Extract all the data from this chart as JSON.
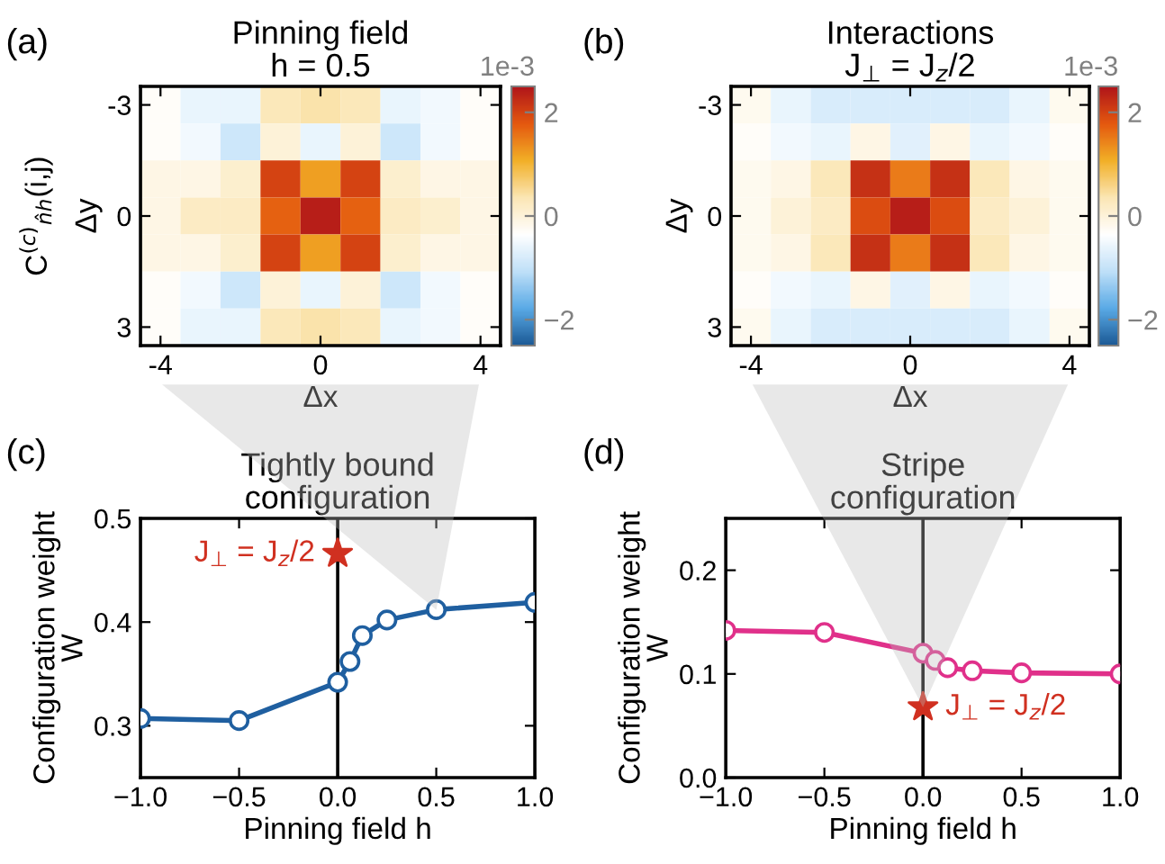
{
  "chart_data": [
    {
      "type": "heatmap",
      "title": "Pinning field\nh = 0.5",
      "xlabel": "Δx",
      "ylabel": "Δy",
      "clabel": "1e-3",
      "annotations": [
        "(a)",
        "C$^{(c)}$$_{n̂h}$(i,j)"
      ],
      "categories": [
        "-4",
        null,
        null,
        null,
        "0",
        null,
        null,
        null,
        "4"
      ],
      "y_categories": [
        "-3",
        null,
        null,
        "0",
        null,
        null,
        "3"
      ],
      "cells": [
        [
          -0.3,
          -0.6,
          -0.6,
          0.3,
          0.4,
          0.3,
          -0.6,
          -0.5,
          -0.3
        ],
        [
          -0.3,
          -0.5,
          -0.9,
          0.0,
          -0.6,
          0.0,
          -0.9,
          -0.5,
          -0.3
        ],
        [
          -0.1,
          -0.1,
          0.1,
          2.0,
          1.2,
          2.0,
          0.1,
          -0.1,
          -0.1
        ],
        [
          -0.1,
          0.2,
          0.2,
          1.7,
          2.4,
          1.7,
          0.2,
          0.1,
          -0.1
        ],
        [
          -0.1,
          -0.1,
          0.1,
          2.0,
          1.2,
          2.0,
          0.1,
          -0.1,
          -0.1
        ],
        [
          -0.3,
          -0.5,
          -0.9,
          0.0,
          -0.6,
          0.0,
          -0.9,
          -0.5,
          -0.3
        ],
        [
          -0.3,
          -0.6,
          -0.6,
          0.3,
          0.4,
          0.3,
          -0.6,
          -0.5,
          -0.3
        ]
      ],
      "clim": [
        -2.5,
        2.5
      ],
      "cticks": [
        {
          "value": -2,
          "label": "−2"
        },
        {
          "value": 0,
          "label": "0"
        },
        {
          "value": 2,
          "label": "2"
        }
      ]
    },
    {
      "type": "heatmap",
      "title": "Interactions\nJ$_{⊥}$ = J$_{z}$/2",
      "xlabel": "Δx",
      "ylabel": "Δy",
      "clabel": "1e-3",
      "annotations": [
        "(b)"
      ],
      "categories": [
        "-4",
        null,
        null,
        null,
        "0",
        null,
        null,
        null,
        "4"
      ],
      "y_categories": [
        "-3",
        null,
        null,
        "0",
        null,
        null,
        "3"
      ],
      "cells": [
        [
          -0.2,
          -0.6,
          -0.8,
          -0.8,
          -0.8,
          -0.8,
          -0.8,
          -0.6,
          -0.2
        ],
        [
          -0.3,
          -0.5,
          -0.6,
          -0.1,
          -0.7,
          -0.1,
          -0.6,
          -0.5,
          -0.3
        ],
        [
          -0.2,
          -0.1,
          0.3,
          2.2,
          1.5,
          2.2,
          0.3,
          -0.1,
          -0.2
        ],
        [
          -0.2,
          0.0,
          0.2,
          1.9,
          2.4,
          1.9,
          0.2,
          0.0,
          -0.2
        ],
        [
          -0.2,
          -0.1,
          0.3,
          2.2,
          1.5,
          2.2,
          0.3,
          -0.1,
          -0.2
        ],
        [
          -0.3,
          -0.5,
          -0.6,
          -0.1,
          -0.7,
          -0.1,
          -0.6,
          -0.5,
          -0.3
        ],
        [
          -0.2,
          -0.6,
          -0.8,
          -0.8,
          -0.8,
          -0.8,
          -0.8,
          -0.6,
          -0.2
        ]
      ],
      "clim": [
        -2.5,
        2.5
      ],
      "cticks": [
        {
          "value": -2,
          "label": "−2"
        },
        {
          "value": 0,
          "label": "0"
        },
        {
          "value": 2,
          "label": "2"
        }
      ]
    },
    {
      "type": "line",
      "title": "Tightly bound\nconfiguration",
      "xlabel": "Pinning field h",
      "ylabel": "Configuration weight\nW",
      "marker": "circle",
      "annotations": [
        "(c)",
        {
          "text": "J$_{⊥}$ = J$_{z}$/2",
          "x": 0,
          "y": 0.466
        }
      ],
      "series": [
        {
          "x": [
            -1,
            -0.5,
            0,
            0.0625,
            0.125,
            0.25,
            0.5,
            1
          ],
          "values": [
            0.307,
            0.305,
            0.342,
            0.362,
            0.387,
            0.402,
            0.412,
            0.419
          ],
          "color": "#1f5fa0"
        },
        {
          "type": "scatter",
          "marker": "star",
          "x": [
            0
          ],
          "values": [
            0.466
          ],
          "color": "#d03020"
        }
      ],
      "xlim": [
        -1,
        1
      ],
      "xticks": [
        {
          "value": -1,
          "label": "−1.0"
        },
        {
          "value": -0.5,
          "label": "−0.5"
        },
        {
          "value": 0,
          "label": "0.0"
        },
        {
          "value": 0.5,
          "label": "0.5"
        },
        {
          "value": 1,
          "label": "1.0"
        }
      ],
      "ylim": [
        0.25,
        0.5
      ],
      "yticks": [
        {
          "value": 0.3,
          "label": "0.3"
        },
        {
          "value": 0.4,
          "label": "0.4"
        },
        {
          "value": 0.5,
          "label": "0.5"
        }
      ],
      "ref_lines": [
        {
          "axis": "x",
          "value": 0,
          "color": "#000000"
        }
      ]
    },
    {
      "type": "line",
      "title": "Stripe\nconfiguration",
      "xlabel": "Pinning field h",
      "ylabel": "Configuration weight\nW",
      "marker": "circle",
      "annotations": [
        "(d)",
        {
          "text": "J$_{⊥}$ = J$_{z}$/2",
          "x": 0,
          "y": 0.068
        }
      ],
      "series": [
        {
          "x": [
            -1,
            -0.5,
            0,
            0.0625,
            0.125,
            0.25,
            0.5,
            1
          ],
          "values": [
            0.142,
            0.14,
            0.12,
            0.113,
            0.106,
            0.103,
            0.101,
            0.1
          ],
          "color": "#e0308a"
        },
        {
          "type": "scatter",
          "marker": "star",
          "x": [
            0
          ],
          "values": [
            0.068
          ],
          "color": "#d03020"
        }
      ],
      "xlim": [
        -1,
        1
      ],
      "xticks": [
        {
          "value": -1,
          "label": "−1.0"
        },
        {
          "value": -0.5,
          "label": "−0.5"
        },
        {
          "value": 0,
          "label": "0.0"
        },
        {
          "value": 0.5,
          "label": "0.5"
        },
        {
          "value": 1,
          "label": "1.0"
        }
      ],
      "ylim": [
        0,
        0.25
      ],
      "yticks": [
        {
          "value": 0,
          "label": "0.0"
        },
        {
          "value": 0.1,
          "label": "0.1"
        },
        {
          "value": 0.2,
          "label": "0.2"
        }
      ],
      "ref_lines": [
        {
          "axis": "x",
          "value": 0,
          "color": "#000000"
        }
      ]
    }
  ]
}
